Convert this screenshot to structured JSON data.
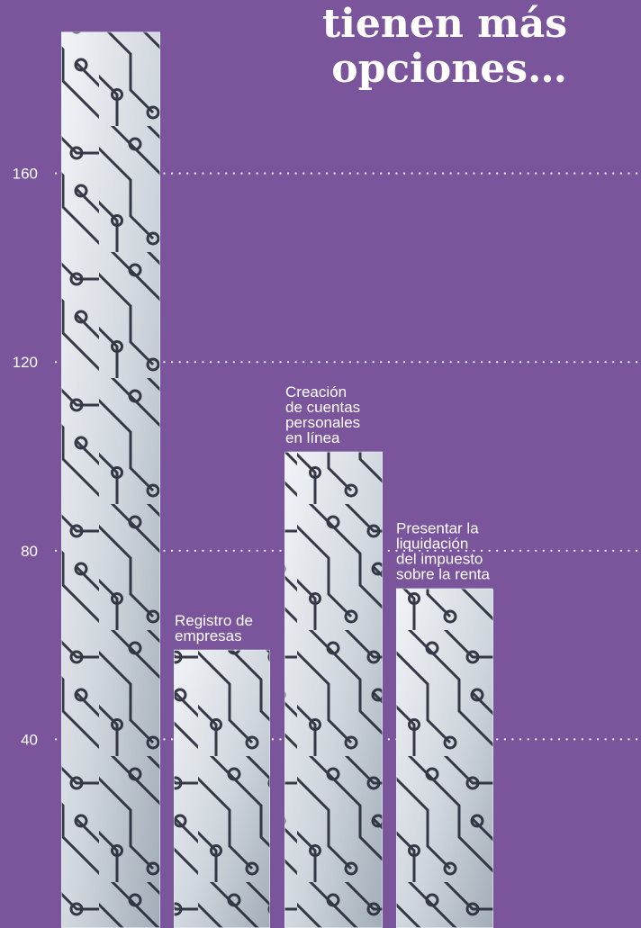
{
  "title_lines": [
    "tienen más",
    "opciones…"
  ],
  "colors": {
    "background": "#7a559b",
    "bar_light": "#eef1f4",
    "bar_dark": "#a5afb9",
    "trace": "#2c2f3d",
    "grid": "#ffffff",
    "text": "#ffffff"
  },
  "chart_data": {
    "type": "bar",
    "categories": [
      "",
      "Registro de empresas",
      "Creación de cuentas personales en línea",
      "Presentar la liquidación del impuesto sobre la renta"
    ],
    "category_label_lines": [
      [],
      [
        "Registro de",
        "empresas"
      ],
      [
        "Creación",
        "de cuentas",
        "personales",
        "en línea"
      ],
      [
        "Presentar la",
        "liquidación",
        "del impuesto",
        "sobre la renta"
      ]
    ],
    "values": [
      190,
      59,
      101,
      72
    ],
    "yticks": [
      40,
      80,
      120,
      160
    ],
    "ylim": [
      0,
      200
    ],
    "grid": true,
    "grid_style": "dotted",
    "bar_fill": "circuit-board pattern"
  }
}
